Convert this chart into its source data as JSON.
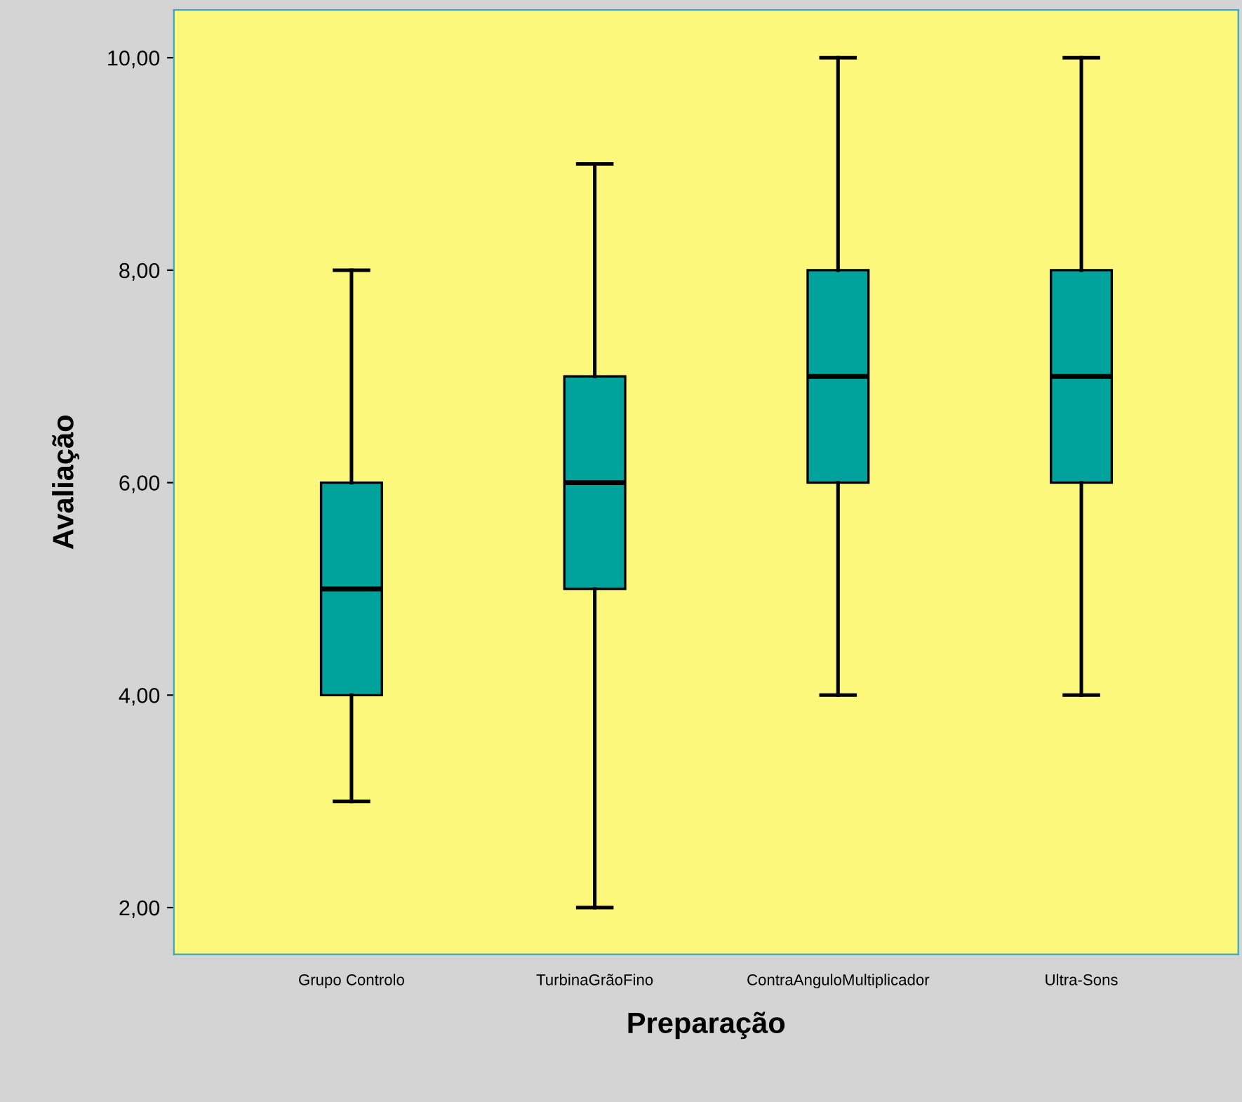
{
  "chart_data": {
    "type": "box",
    "xlabel": "Preparação",
    "ylabel": "Avaliação",
    "categories": [
      "Grupo Controlo",
      "TurbinaGrãoFino",
      "ContraAnguloMultiplicador",
      "Ultra-Sons"
    ],
    "boxes": [
      {
        "low": 3,
        "q1": 4,
        "median": 5,
        "q3": 6,
        "high": 8
      },
      {
        "low": 2,
        "q1": 5,
        "median": 6,
        "q3": 7,
        "high": 9
      },
      {
        "low": 4,
        "q1": 6,
        "median": 7,
        "q3": 8,
        "high": 10
      },
      {
        "low": 4,
        "q1": 6,
        "median": 7,
        "q3": 8,
        "high": 10
      }
    ],
    "color": "#00a39b",
    "ylim": [
      1.56,
      10.45
    ],
    "yticks": [
      {
        "value": 2,
        "label": "2,00"
      },
      {
        "value": 4,
        "label": "4,00"
      },
      {
        "value": 6,
        "label": "6,00"
      },
      {
        "value": 8,
        "label": "8,00"
      },
      {
        "value": 10,
        "label": "10,00"
      }
    ],
    "grid": false
  }
}
